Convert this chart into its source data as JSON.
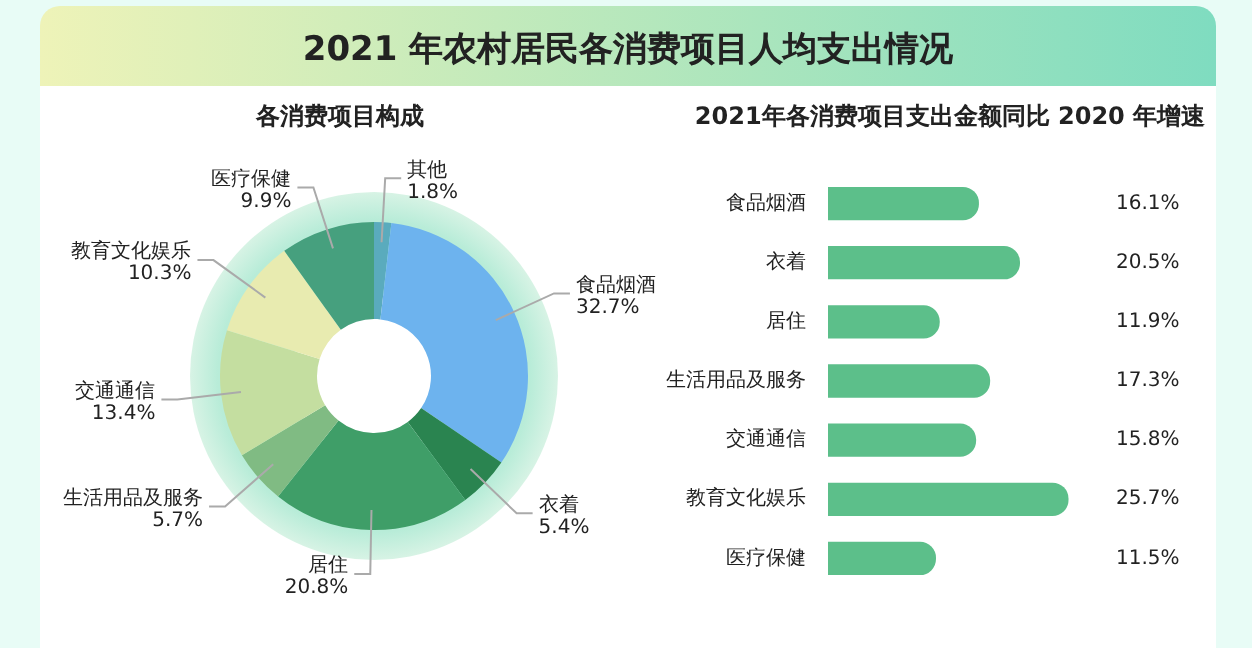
{
  "chart_data": [
    {
      "type": "donut",
      "title": "2021 年农村居民各消费项目人均支出情况",
      "subtitle": "各消费项目构成",
      "categories": [
        "其他",
        "食品烟酒",
        "衣着",
        "居住",
        "生活用品及服务",
        "交通通信",
        "教育文化娱乐",
        "医疗保健"
      ],
      "values": [
        1.8,
        32.7,
        5.4,
        20.8,
        5.7,
        13.4,
        10.3,
        9.9
      ],
      "value_labels": [
        "1.8%",
        "32.7%",
        "5.4%",
        "20.8%",
        "5.7%",
        "13.4%",
        "10.3%",
        "9.9%"
      ],
      "colors": [
        "#5aabbd",
        "#6db3ee",
        "#2a8450",
        "#3f9e68",
        "#80bb83",
        "#c4dea0",
        "#e8ebb0",
        "#46a07e"
      ],
      "legend": false
    },
    {
      "type": "bar",
      "orientation": "horizontal",
      "title": "2021年各消费项目支出金额同比 2020 年增速",
      "categories": [
        "食品烟酒",
        "衣着",
        "居住",
        "生活用品及服务",
        "交通通信",
        "教育文化娱乐",
        "医疗保健"
      ],
      "values": [
        16.1,
        20.5,
        11.9,
        17.3,
        15.8,
        25.7,
        11.5
      ],
      "value_labels": [
        "16.1%",
        "20.5%",
        "11.9%",
        "17.3%",
        "15.8%",
        "25.7%",
        "11.5%"
      ],
      "color": "#5cbf8a",
      "tick_labels": "y",
      "legend": false
    }
  ]
}
